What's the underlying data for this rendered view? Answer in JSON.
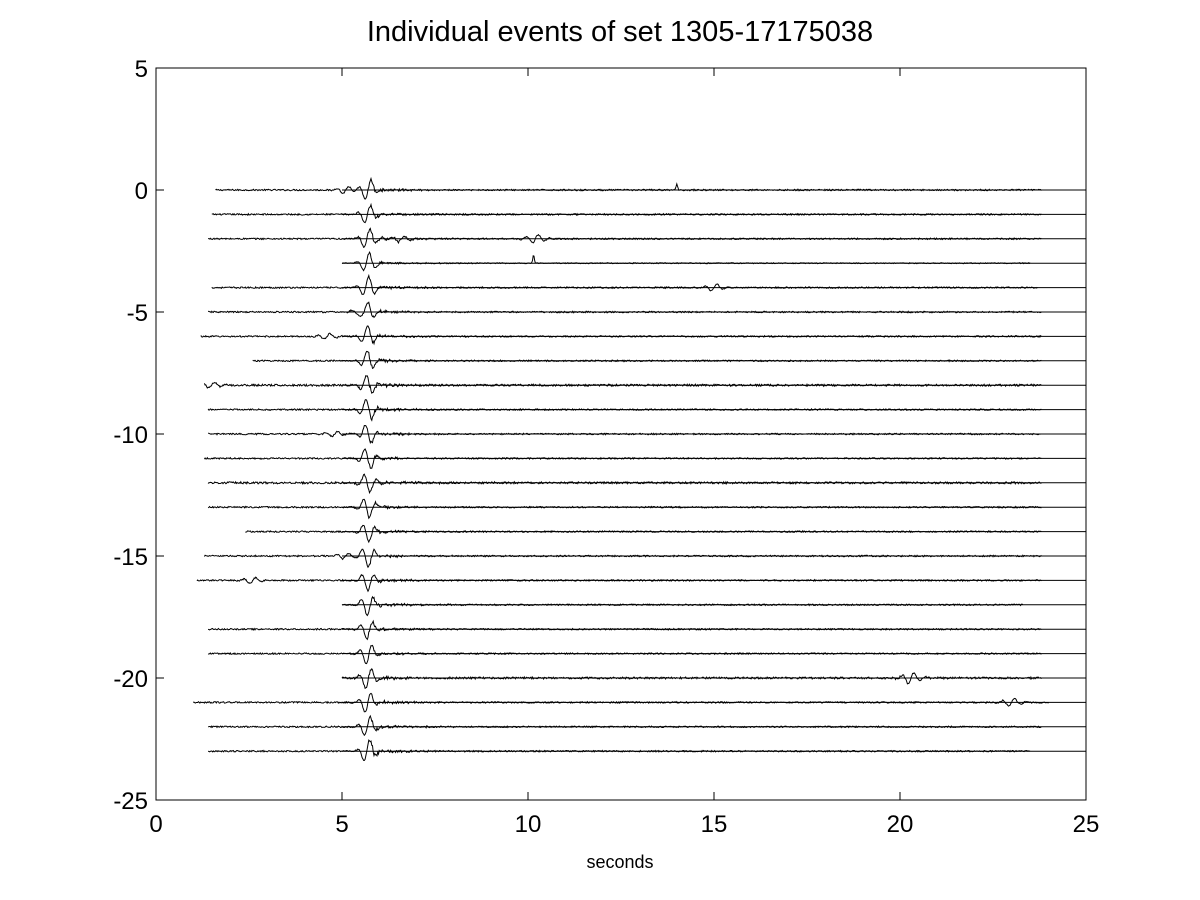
{
  "chart_data": {
    "type": "line",
    "title": "Individual events of set 1305-17175038",
    "xlabel": "seconds",
    "ylabel": "",
    "xlim": [
      0,
      25
    ],
    "ylim": [
      -25,
      5
    ],
    "xticks": [
      0,
      5,
      10,
      15,
      20,
      25
    ],
    "yticks": [
      5,
      0,
      -5,
      -10,
      -15,
      -20,
      -25
    ],
    "xtick_labels": [
      "0",
      "5",
      "10",
      "15",
      "20",
      "25"
    ],
    "ytick_labels": [
      "5",
      "0",
      "-5",
      "-10",
      "-15",
      "-20",
      "-25"
    ],
    "grid": false,
    "trace_color": "#000000",
    "series": [
      {
        "offset": 0,
        "start": 1.6,
        "end": 23.8,
        "main_amp": 0.45,
        "noise": 0.03,
        "extra": [
          {
            "t": 14.0,
            "amp": 0.25,
            "kind": "spike"
          },
          {
            "t": 5.1,
            "amp": 0.15,
            "kind": "burst"
          }
        ]
      },
      {
        "offset": -1,
        "start": 1.5,
        "end": 23.8,
        "main_amp": 0.42,
        "noise": 0.03,
        "extra": []
      },
      {
        "offset": -2,
        "start": 1.4,
        "end": 23.8,
        "main_amp": 0.45,
        "noise": 0.03,
        "extra": [
          {
            "t": 10.2,
            "amp": 0.18,
            "kind": "burst"
          },
          {
            "t": 6.6,
            "amp": 0.12,
            "kind": "burst"
          }
        ]
      },
      {
        "offset": -3,
        "start": 5.0,
        "end": 23.5,
        "main_amp": 0.42,
        "noise": 0.02,
        "extra": [
          {
            "t": 10.15,
            "amp": 0.35,
            "kind": "spike"
          }
        ]
      },
      {
        "offset": -4,
        "start": 1.5,
        "end": 23.7,
        "main_amp": 0.45,
        "noise": 0.03,
        "extra": [
          {
            "t": 15.0,
            "amp": 0.15,
            "kind": "burst"
          }
        ]
      },
      {
        "offset": -5,
        "start": 1.4,
        "end": 23.8,
        "main_amp": 0.42,
        "noise": 0.03,
        "extra": [
          {
            "t": 5.5,
            "amp": 0.15,
            "kind": "burst"
          }
        ]
      },
      {
        "offset": -6,
        "start": 1.2,
        "end": 23.8,
        "main_amp": 0.45,
        "noise": 0.03,
        "extra": [
          {
            "t": 4.6,
            "amp": 0.12,
            "kind": "burst"
          }
        ]
      },
      {
        "offset": -7,
        "start": 2.6,
        "end": 23.8,
        "main_amp": 0.42,
        "noise": 0.03,
        "extra": []
      },
      {
        "offset": -8,
        "start": 1.3,
        "end": 23.8,
        "main_amp": 0.42,
        "noise": 0.04,
        "extra": [
          {
            "t": 1.5,
            "amp": 0.12,
            "kind": "burst"
          }
        ]
      },
      {
        "offset": -9,
        "start": 1.4,
        "end": 23.8,
        "main_amp": 0.45,
        "noise": 0.03,
        "extra": []
      },
      {
        "offset": -10,
        "start": 1.4,
        "end": 23.8,
        "main_amp": 0.42,
        "noise": 0.03,
        "extra": [
          {
            "t": 4.8,
            "amp": 0.1,
            "kind": "burst"
          }
        ]
      },
      {
        "offset": -11,
        "start": 1.3,
        "end": 23.8,
        "main_amp": 0.45,
        "noise": 0.03,
        "extra": []
      },
      {
        "offset": -12,
        "start": 1.4,
        "end": 23.8,
        "main_amp": 0.42,
        "noise": 0.04,
        "extra": []
      },
      {
        "offset": -13,
        "start": 1.4,
        "end": 23.8,
        "main_amp": 0.45,
        "noise": 0.03,
        "extra": []
      },
      {
        "offset": -14,
        "start": 2.4,
        "end": 23.8,
        "main_amp": 0.42,
        "noise": 0.03,
        "extra": []
      },
      {
        "offset": -15,
        "start": 1.3,
        "end": 23.8,
        "main_amp": 0.45,
        "noise": 0.03,
        "extra": [
          {
            "t": 5.1,
            "amp": 0.12,
            "kind": "burst"
          }
        ]
      },
      {
        "offset": -16,
        "start": 1.1,
        "end": 23.8,
        "main_amp": 0.42,
        "noise": 0.03,
        "extra": [
          {
            "t": 2.6,
            "amp": 0.12,
            "kind": "burst"
          }
        ]
      },
      {
        "offset": -17,
        "start": 5.0,
        "end": 23.3,
        "main_amp": 0.45,
        "noise": 0.03,
        "extra": []
      },
      {
        "offset": -18,
        "start": 1.4,
        "end": 23.8,
        "main_amp": 0.42,
        "noise": 0.03,
        "extra": []
      },
      {
        "offset": -19,
        "start": 1.4,
        "end": 23.8,
        "main_amp": 0.45,
        "noise": 0.03,
        "extra": []
      },
      {
        "offset": -20,
        "start": 5.0,
        "end": 23.8,
        "main_amp": 0.45,
        "noise": 0.04,
        "extra": [
          {
            "t": 20.3,
            "amp": 0.25,
            "kind": "burst"
          }
        ]
      },
      {
        "offset": -21,
        "start": 1.0,
        "end": 24.0,
        "main_amp": 0.45,
        "noise": 0.03,
        "extra": [
          {
            "t": 23.0,
            "amp": 0.15,
            "kind": "burst"
          }
        ]
      },
      {
        "offset": -22,
        "start": 1.4,
        "end": 23.8,
        "main_amp": 0.42,
        "noise": 0.03,
        "extra": []
      },
      {
        "offset": -23,
        "start": 1.4,
        "end": 23.5,
        "main_amp": 0.5,
        "noise": 0.03,
        "extra": []
      }
    ],
    "reference_lines": {
      "y_values": [
        0,
        -1,
        -2,
        -3,
        -4,
        -5,
        -6,
        -7,
        -8,
        -9,
        -10,
        -11,
        -12,
        -13,
        -14,
        -15,
        -16,
        -17,
        -18,
        -19,
        -20,
        -21,
        -22,
        -23
      ],
      "x_from": 5.0,
      "x_to": 25
    },
    "arrival_time": 5.7
  }
}
